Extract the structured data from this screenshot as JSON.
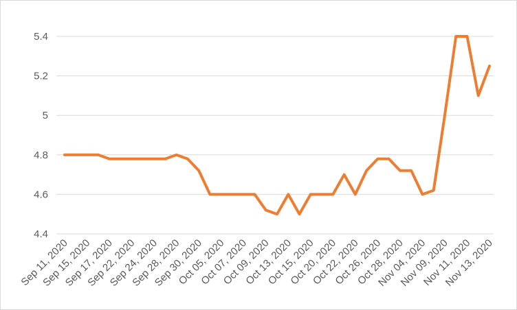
{
  "chart_data": {
    "type": "line",
    "title": "",
    "xlabel": "",
    "ylabel": "",
    "ylim": [
      4.4,
      5.4
    ],
    "y_ticks": [
      "4.4",
      "4.6",
      "4.8",
      "5",
      "5.2",
      "5.4"
    ],
    "x_tick_labels": [
      "Sep 11, 2020",
      "Sep 15, 2020",
      "Sep 17, 2020",
      "Sep 22, 2020",
      "Sep 24, 2020",
      "Sep 28, 2020",
      "Sep 30, 2020",
      "Oct 05, 2020",
      "Oct 07, 2020",
      "Oct 09, 2020",
      "Oct 13, 2020",
      "Oct 15, 2020",
      "Oct 20, 2020",
      "Oct 22, 2020",
      "Oct 26, 2020",
      "Oct 28, 2020",
      "Nov 04, 2020",
      "Nov 09, 2020",
      "Nov 11, 2020",
      "Nov 13, 2020"
    ],
    "grid": true,
    "legend": "none",
    "series": [
      {
        "color": "#ED7D31",
        "values": [
          4.8,
          4.8,
          4.8,
          4.8,
          4.78,
          4.78,
          4.78,
          4.78,
          4.78,
          4.78,
          4.8,
          4.78,
          4.72,
          4.6,
          4.6,
          4.6,
          4.6,
          4.6,
          4.52,
          4.5,
          4.6,
          4.5,
          4.6,
          4.6,
          4.6,
          4.7,
          4.6,
          4.72,
          4.78,
          4.78,
          4.72,
          4.72,
          4.6,
          4.62,
          5.0,
          5.4,
          5.4,
          5.1,
          5.25
        ]
      }
    ]
  }
}
